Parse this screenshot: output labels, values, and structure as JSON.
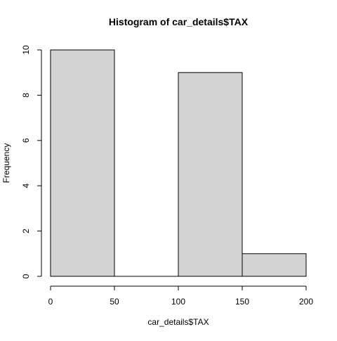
{
  "chart_data": {
    "type": "bar",
    "title": "Histogram of car_details$TAX",
    "xlabel": "car_details$TAX",
    "ylabel": "Frequency",
    "bins": [
      {
        "from": 0,
        "to": 50,
        "count": 10
      },
      {
        "from": 50,
        "to": 100,
        "count": 0
      },
      {
        "from": 100,
        "to": 150,
        "count": 9
      },
      {
        "from": 150,
        "to": 200,
        "count": 1
      }
    ],
    "xlim": [
      0,
      200
    ],
    "ylim": [
      0,
      10
    ],
    "x_ticks": [
      0,
      50,
      100,
      150,
      200
    ],
    "y_ticks": [
      0,
      2,
      4,
      6,
      8,
      10
    ],
    "bar_fill": "#d3d3d3",
    "bar_stroke": "#000000",
    "grid": false,
    "legend": "none"
  }
}
